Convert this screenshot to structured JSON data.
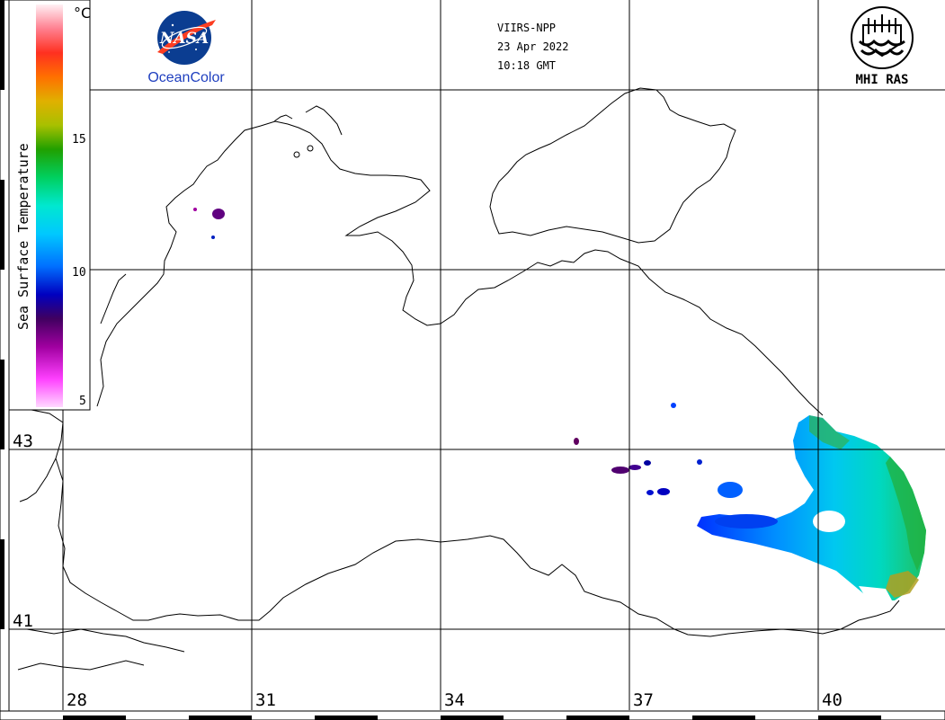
{
  "header": {
    "satellite": "VIIRS-NPP",
    "date": "23 Apr 2022",
    "time": "10:18 GMT"
  },
  "logos": {
    "nasa_wordmark": "NASA",
    "nasa_caption": "OceanColor",
    "mhi_caption": "MHI RAS"
  },
  "colorbar": {
    "title": "Sea Surface Temperature",
    "unit": "°C",
    "ticks": [
      "15",
      "10",
      "5"
    ],
    "colors": [
      "#ffc0ff",
      "#ff00ff",
      "#a000a0",
      "#500050",
      "#0000c0",
      "#0060ff",
      "#00c8ff",
      "#00e0d0",
      "#00d070",
      "#00b000",
      "#80c000",
      "#c0c000",
      "#ff8000",
      "#ff4000",
      "#ff6080",
      "#ffb0c0",
      "#ffe0f0"
    ]
  },
  "grid": {
    "lon_labels": [
      "28",
      "31",
      "34",
      "37",
      "40"
    ],
    "lat_labels": [
      "43",
      "41"
    ]
  },
  "legend_colors": {
    "coast": "#000000",
    "grid": "#000000",
    "nasa_blue": "#0b3d91",
    "nasa_red": "#fc3d21",
    "caption_blue": "#1f3fbf"
  }
}
